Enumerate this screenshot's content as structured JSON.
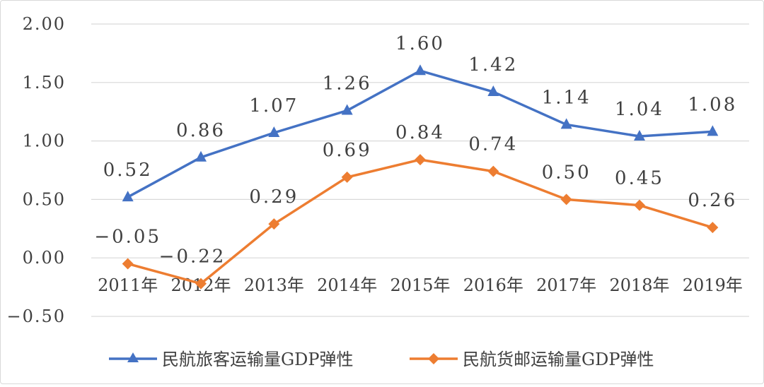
{
  "chart_data": {
    "type": "line",
    "categories": [
      "2011年",
      "2012年",
      "2013年",
      "2014年",
      "2015年",
      "2016年",
      "2017年",
      "2018年",
      "2019年"
    ],
    "series": [
      {
        "name": "民航旅客运输量GDP弹性",
        "values": [
          0.52,
          0.86,
          1.07,
          1.26,
          1.6,
          1.42,
          1.14,
          1.04,
          1.08
        ],
        "labels": [
          "0.52",
          "0.86",
          "1.07",
          "1.26",
          "1.60",
          "1.42",
          "1.14",
          "1.04",
          "1.08"
        ],
        "color": "#4472c4",
        "marker": "triangle"
      },
      {
        "name": "民航货邮运输量GDP弹性",
        "values": [
          -0.05,
          -0.22,
          0.29,
          0.69,
          0.84,
          0.74,
          0.5,
          0.45,
          0.26
        ],
        "labels": [
          "−0.05",
          "−0.22",
          "0.29",
          "0.69",
          "0.84",
          "0.74",
          "0.50",
          "0.45",
          "0.26"
        ],
        "color": "#ed7d31",
        "marker": "diamond"
      }
    ],
    "yticks": [
      "2.00",
      "1.50",
      "1.00",
      "0.50",
      "0.00",
      "−0.50"
    ],
    "ytick_values": [
      2.0,
      1.5,
      1.0,
      0.5,
      0.0,
      -0.5
    ],
    "ylim": [
      -0.5,
      2.0
    ],
    "grid": true,
    "legend_position": "bottom"
  }
}
